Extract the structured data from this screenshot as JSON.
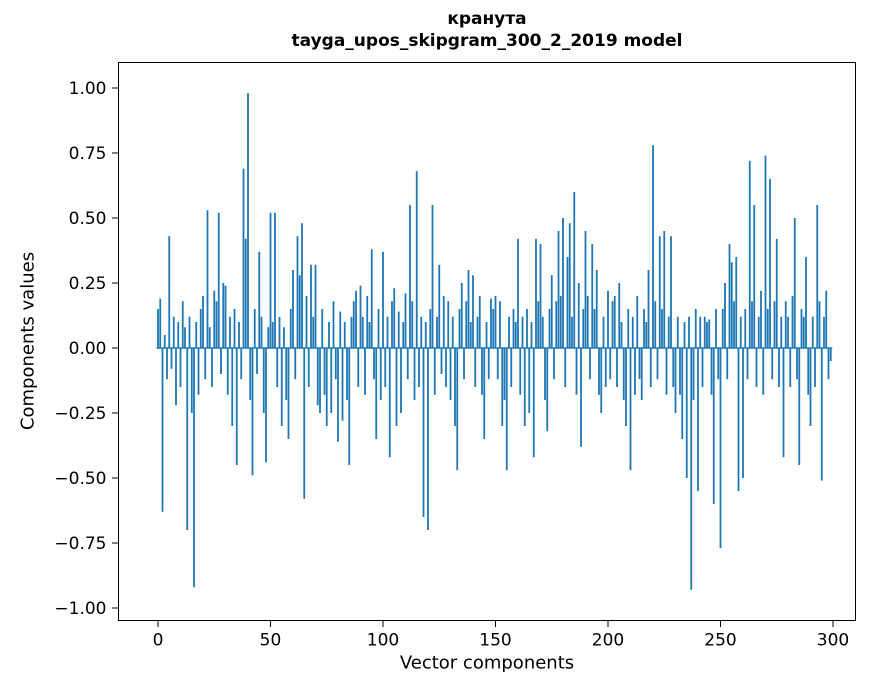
{
  "figure": {
    "title_line1": "кранута",
    "title_line2": "tayga_upos_skipgram_300_2_2019 model"
  },
  "chart_data": {
    "type": "bar",
    "title": "кранута — tayga_upos_skipgram_300_2_2019 model",
    "xlabel": "Vector components",
    "ylabel": "Components values",
    "xlim": [
      -18,
      310
    ],
    "ylim": [
      -1.1,
      1.1
    ],
    "x_ticks": [
      0,
      50,
      100,
      150,
      200,
      250,
      300
    ],
    "y_ticks": [
      -1.0,
      -0.75,
      -0.5,
      -0.25,
      0.0,
      0.25,
      0.5,
      0.75,
      1.0
    ],
    "bar_color": "#1f77b4",
    "x_start": 0,
    "x_step": 1,
    "values": [
      0.15,
      0.19,
      -0.63,
      0.05,
      -0.12,
      0.43,
      -0.08,
      0.12,
      -0.22,
      0.1,
      -0.15,
      0.18,
      0.08,
      -0.7,
      0.12,
      -0.25,
      -0.92,
      0.1,
      -0.18,
      0.15,
      0.2,
      -0.12,
      0.53,
      0.08,
      -0.15,
      0.22,
      0.18,
      0.52,
      -0.1,
      0.25,
      0.24,
      -0.18,
      0.12,
      -0.3,
      0.15,
      -0.45,
      0.1,
      -0.12,
      0.69,
      0.42,
      0.98,
      -0.2,
      -0.49,
      0.15,
      -0.1,
      0.37,
      0.12,
      -0.25,
      -0.44,
      0.08,
      0.52,
      0.1,
      0.52,
      -0.15,
      0.12,
      -0.3,
      0.08,
      -0.2,
      -0.35,
      0.15,
      0.3,
      -0.12,
      0.43,
      0.28,
      0.48,
      -0.58,
      0.2,
      -0.15,
      0.32,
      0.12,
      0.32,
      -0.22,
      -0.25,
      0.15,
      -0.18,
      -0.3,
      0.1,
      -0.25,
      0.18,
      -0.12,
      -0.36,
      0.14,
      -0.28,
      0.1,
      -0.2,
      -0.45,
      0.12,
      0.18,
      0.22,
      -0.15,
      0.24,
      0.12,
      -0.18,
      0.2,
      0.1,
      0.38,
      -0.12,
      -0.35,
      0.15,
      -0.2,
      0.37,
      -0.15,
      0.12,
      -0.42,
      0.18,
      0.23,
      -0.3,
      0.14,
      -0.25,
      0.1,
      0.21,
      -0.12,
      0.55,
      0.18,
      -0.2,
      0.68,
      -0.15,
      0.12,
      -0.65,
      0.1,
      -0.7,
      0.15,
      0.55,
      -0.18,
      0.12,
      0.32,
      -0.1,
      0.2,
      -0.15,
      0.18,
      -0.2,
      0.12,
      -0.3,
      -0.47,
      0.15,
      0.25,
      -0.12,
      0.18,
      0.3,
      0.1,
      0.28,
      -0.15,
      0.12,
      0.2,
      -0.18,
      -0.35,
      0.1,
      -0.12,
      0.19,
      0.15,
      0.2,
      -0.12,
      0.18,
      -0.3,
      -0.2,
      -0.47,
      0.12,
      -0.15,
      0.15,
      0.1,
      0.42,
      -0.18,
      0.12,
      -0.3,
      0.15,
      -0.25,
      0.1,
      -0.42,
      0.42,
      0.18,
      0.4,
      0.12,
      -0.2,
      -0.32,
      0.15,
      0.28,
      -0.12,
      0.18,
      0.45,
      0.2,
      0.5,
      -0.15,
      0.35,
      0.48,
      0.12,
      0.6,
      -0.18,
      0.25,
      -0.38,
      0.15,
      0.45,
      0.2,
      -0.12,
      0.4,
      0.15,
      0.3,
      -0.18,
      -0.25,
      0.12,
      -0.15,
      0.22,
      -0.12,
      0.18,
      0.2,
      -0.15,
      0.25,
      0.1,
      -0.2,
      -0.3,
      0.15,
      -0.47,
      0.12,
      -0.18,
      0.2,
      -0.12,
      -0.2,
      0.15,
      0.1,
      0.3,
      -0.15,
      0.78,
      0.18,
      -0.12,
      0.43,
      0.15,
      0.45,
      -0.18,
      0.12,
      0.43,
      -0.15,
      -0.25,
      0.12,
      -0.18,
      -0.35,
      0.1,
      -0.5,
      0.12,
      -0.93,
      -0.2,
      0.15,
      -0.55,
      0.12,
      -0.15,
      0.12,
      0.1,
      0.11,
      -0.18,
      -0.6,
      0.15,
      -0.12,
      -0.77,
      0.15,
      0.25,
      -0.12,
      0.4,
      0.33,
      0.18,
      0.35,
      -0.55,
      0.12,
      -0.5,
      0.15,
      -0.12,
      0.72,
      0.18,
      0.55,
      -0.15,
      0.12,
      0.22,
      -0.18,
      0.74,
      0.15,
      0.65,
      -0.12,
      0.18,
      0.42,
      -0.15,
      0.12,
      -0.42,
      0.18,
      0.12,
      -0.15,
      0.2,
      0.5,
      -0.12,
      -0.45,
      0.15,
      0.12,
      0.35,
      -0.18,
      -0.3,
      0.12,
      -0.15,
      0.55,
      0.18,
      -0.51,
      0.12,
      0.22,
      -0.12,
      -0.05
    ]
  }
}
